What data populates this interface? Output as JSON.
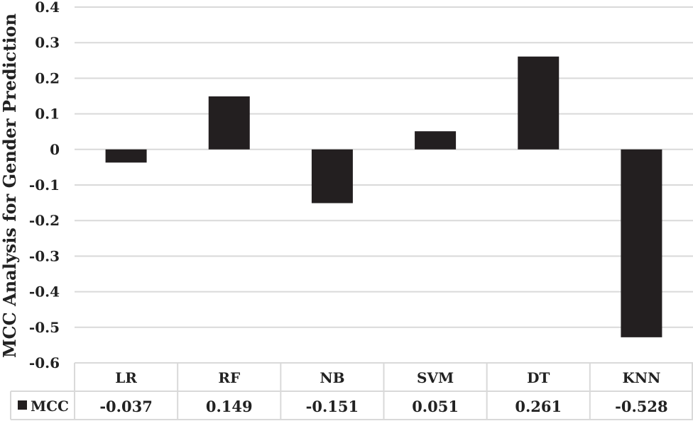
{
  "chart_data": {
    "type": "bar",
    "categories": [
      "LR",
      "RF",
      "NB",
      "SVM",
      "DT",
      "KNN"
    ],
    "series": [
      {
        "name": "MCC",
        "values": [
          -0.037,
          0.149,
          -0.151,
          0.051,
          0.261,
          -0.528
        ],
        "color": "#231f20"
      }
    ],
    "data_table": [
      "-0.037",
      "0.149",
      "-0.151",
      "0.051",
      "0.261",
      "-0.528"
    ],
    "ylabel": "MCC Analysis for Gender Prediction",
    "ylim": [
      -0.6,
      0.4
    ],
    "yticks": [
      "0.4",
      "0.3",
      "0.2",
      "0.1",
      "0",
      "-0.1",
      "-0.2",
      "-0.3",
      "-0.4",
      "-0.5",
      "-0.6"
    ],
    "grid": true,
    "legend": "data table"
  }
}
